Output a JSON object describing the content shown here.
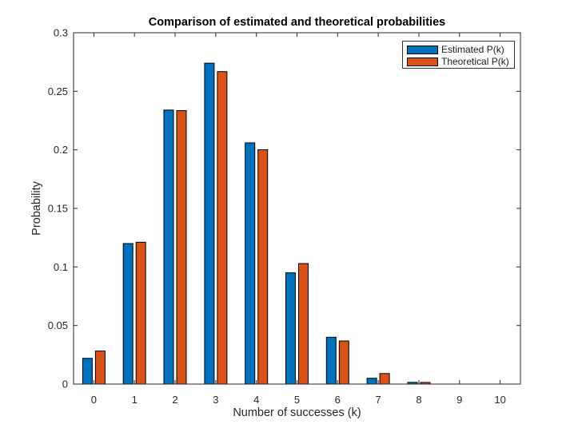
{
  "figure": {
    "title": "Comparison of estimated and theoretical probabilities",
    "xlabel": "Number of successes (k)",
    "ylabel": "Probability"
  },
  "chart_data": {
    "type": "bar",
    "title": "Comparison of estimated and theoretical probabilities",
    "xlabel": "Number of successes (k)",
    "ylabel": "Probability",
    "categories": [
      0,
      1,
      2,
      3,
      4,
      5,
      6,
      7,
      8,
      9,
      10
    ],
    "series": [
      {
        "name": "Estimated P(k)",
        "color": "#0072BD",
        "values": [
          0.022,
          0.12,
          0.234,
          0.274,
          0.206,
          0.095,
          0.04,
          0.005,
          0.0015,
          0,
          0
        ]
      },
      {
        "name": "Theoretical P(k)",
        "color": "#D95319",
        "values": [
          0.0282,
          0.1211,
          0.2335,
          0.2668,
          0.2001,
          0.1029,
          0.0368,
          0.009,
          0.0014,
          0.0001,
          0
        ]
      }
    ],
    "ylim": [
      0,
      0.3
    ],
    "yticks": [
      "0",
      "0.05",
      "0.1",
      "0.15",
      "0.2",
      "0.25",
      "0.3"
    ],
    "xticks": [
      "0",
      "1",
      "2",
      "3",
      "4",
      "5",
      "6",
      "7",
      "8",
      "9",
      "10"
    ],
    "grid": false,
    "legend_position": "top-right",
    "bar_edge_color": "#000000",
    "axis_color": "#262626",
    "tick_direction": "in"
  },
  "legend": {
    "items": [
      {
        "label": "Estimated P(k)",
        "color": "#0072BD"
      },
      {
        "label": "Theoretical P(k)",
        "color": "#D95319"
      }
    ]
  }
}
